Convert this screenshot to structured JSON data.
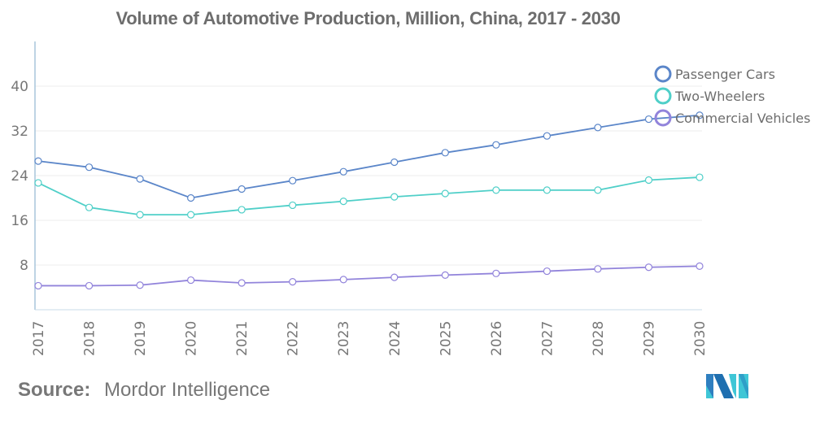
{
  "chart_data": {
    "type": "line",
    "title": "Volume of Automotive Production, Million, China, 2017 - 2030",
    "xlabel": "",
    "ylabel": "",
    "x": [
      "2017",
      "2018",
      "2019",
      "2020",
      "2021",
      "2022",
      "2023",
      "2024",
      "2025",
      "2026",
      "2027",
      "2028",
      "2029",
      "2030"
    ],
    "ylim": [
      0,
      48
    ],
    "yticks": [
      8,
      16,
      24,
      32,
      40
    ],
    "grid": true,
    "legend_position": "top-right",
    "series": [
      {
        "name": "Passenger Cars",
        "color": "#5b86c9",
        "values": [
          26.6,
          25.5,
          23.4,
          20.0,
          21.6,
          23.1,
          24.7,
          26.4,
          28.1,
          29.5,
          31.1,
          32.6,
          34.1,
          34.8
        ]
      },
      {
        "name": "Two-Wheelers",
        "color": "#4fcfc8",
        "values": [
          22.7,
          18.3,
          17.0,
          17.0,
          17.9,
          18.7,
          19.4,
          20.2,
          20.8,
          21.4,
          21.4,
          21.4,
          23.2,
          23.7
        ]
      },
      {
        "name": "Commercial Vehicles",
        "color": "#9284db",
        "values": [
          4.3,
          4.3,
          4.4,
          5.3,
          4.8,
          5.0,
          5.4,
          5.8,
          6.2,
          6.5,
          6.9,
          7.3,
          7.6,
          7.8
        ]
      }
    ]
  },
  "footer": {
    "source_label": "Source:",
    "source_name": "Mordor Intelligence",
    "logo": "mordor-intelligence-logo"
  }
}
